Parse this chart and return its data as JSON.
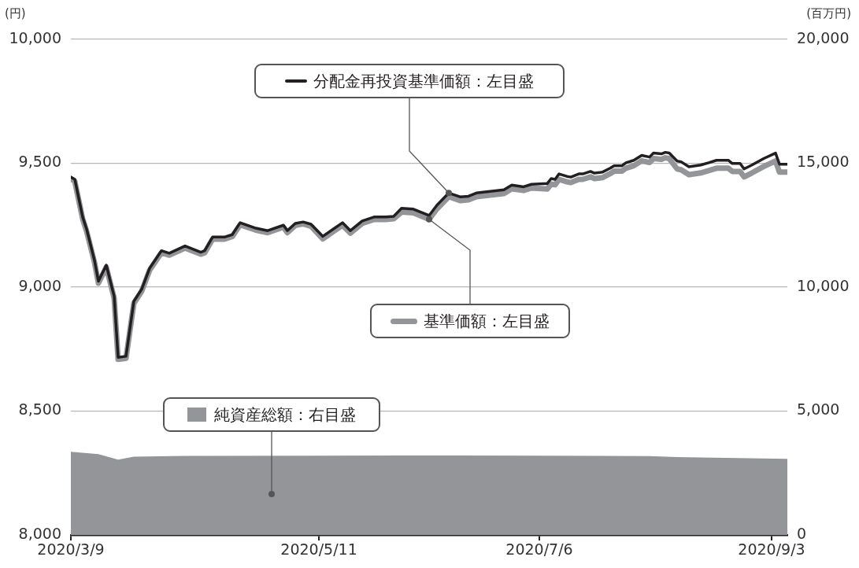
{
  "chart_data": {
    "type": "line",
    "ylabel": "(円)",
    "y2label": "(百万円)",
    "x": [
      "2020-03-09",
      "2020-03-10",
      "2020-03-12",
      "2020-03-13",
      "2020-03-15",
      "2020-03-16",
      "2020-03-18",
      "2020-03-20",
      "2020-03-21",
      "2020-03-23",
      "2020-03-25",
      "2020-03-27",
      "2020-03-29",
      "2020-04-01",
      "2020-04-03",
      "2020-04-07",
      "2020-04-11",
      "2020-04-12",
      "2020-04-14",
      "2020-04-17",
      "2020-04-19",
      "2020-04-21",
      "2020-04-25",
      "2020-04-28",
      "2020-05-02",
      "2020-05-03",
      "2020-05-05",
      "2020-05-07",
      "2020-05-09",
      "2020-05-12",
      "2020-05-15",
      "2020-05-17",
      "2020-05-19",
      "2020-05-22",
      "2020-05-25",
      "2020-05-28",
      "2020-05-30",
      "2020-06-01",
      "2020-06-04",
      "2020-06-08",
      "2020-06-10",
      "2020-06-13",
      "2020-06-16",
      "2020-06-18",
      "2020-06-20",
      "2020-06-27",
      "2020-06-29",
      "2020-07-02",
      "2020-07-04",
      "2020-07-08",
      "2020-07-09",
      "2020-07-10",
      "2020-07-11",
      "2020-07-13",
      "2020-07-14",
      "2020-07-16",
      "2020-07-17",
      "2020-07-19",
      "2020-07-20",
      "2020-07-22",
      "2020-07-24",
      "2020-07-25",
      "2020-07-27",
      "2020-07-28",
      "2020-07-30",
      "2020-08-01",
      "2020-08-03",
      "2020-08-04",
      "2020-08-06",
      "2020-08-07",
      "2020-08-08",
      "2020-08-10",
      "2020-08-11",
      "2020-08-13",
      "2020-08-16",
      "2020-08-18",
      "2020-08-20",
      "2020-08-23",
      "2020-08-24",
      "2020-08-26",
      "2020-08-27",
      "2020-08-29",
      "2020-09-01",
      "2020-09-04",
      "2020-09-05",
      "2020-09-07"
    ],
    "xlim": [
      "2020-03-09",
      "2020-09-07"
    ],
    "xticks": [
      {
        "value": "2020-03-09",
        "label": "2020/3/9"
      },
      {
        "value": "2020-05-11",
        "label": "2020/5/11"
      },
      {
        "value": "2020-07-06",
        "label": "2020/7/6"
      },
      {
        "value": "2020-09-03",
        "label": "2020/9/3"
      }
    ],
    "ylim": [
      8000,
      10000
    ],
    "yticks": [
      {
        "value": 8000,
        "label": "8,000"
      },
      {
        "value": 8500,
        "label": "8,500"
      },
      {
        "value": 9000,
        "label": "9,000"
      },
      {
        "value": 9500,
        "label": "9,500"
      },
      {
        "value": 10000,
        "label": "10,000"
      }
    ],
    "y2lim": [
      0,
      20000
    ],
    "y2ticks": [
      0,
      {
        "value": 5000,
        "label": "5,000"
      },
      {
        "value": 10000,
        "label": "10,000"
      },
      {
        "value": 15000,
        "label": "15,000"
      },
      {
        "value": 20000,
        "label": "20,000"
      }
    ],
    "grid": "y",
    "legend": "top",
    "marker": "none",
    "series": [
      {
        "name": "分配金再投資基準価額：左目盛",
        "color": "#231f20",
        "values": [
          9444,
          9435,
          9283,
          9234,
          9108,
          9024,
          9089,
          8963,
          8717,
          8721,
          8943,
          8992,
          9076,
          9147,
          9137,
          9166,
          9141,
          9147,
          9202,
          9202,
          9212,
          9260,
          9238,
          9228,
          9250,
          9228,
          9257,
          9263,
          9254,
          9205,
          9238,
          9260,
          9228,
          9267,
          9283,
          9283,
          9286,
          9318,
          9315,
          9289,
          9331,
          9380,
          9364,
          9367,
          9380,
          9393,
          9412,
          9405,
          9415,
          9418,
          9438,
          9435,
          9457,
          9447,
          9444,
          9457,
          9457,
          9467,
          9460,
          9464,
          9480,
          9490,
          9490,
          9502,
          9512,
          9532,
          9525,
          9541,
          9538,
          9544,
          9541,
          9509,
          9506,
          9486,
          9493,
          9502,
          9512,
          9512,
          9499,
          9499,
          9477,
          9493,
          9519,
          9541,
          9496,
          9496
        ]
      },
      {
        "name": "基準価額：左目盛",
        "color": "#939598",
        "values": [
          9437,
          9427,
          9275,
          9226,
          9100,
          9016,
          9081,
          8955,
          8709,
          8713,
          8935,
          8984,
          9068,
          9139,
          9129,
          9158,
          9133,
          9139,
          9194,
          9194,
          9204,
          9252,
          9230,
          9220,
          9242,
          9220,
          9249,
          9255,
          9246,
          9195,
          9228,
          9250,
          9218,
          9257,
          9273,
          9273,
          9276,
          9303,
          9300,
          9274,
          9316,
          9365,
          9349,
          9352,
          9365,
          9378,
          9397,
          9390,
          9400,
          9396,
          9416,
          9413,
          9435,
          9425,
          9422,
          9435,
          9435,
          9445,
          9438,
          9442,
          9458,
          9468,
          9468,
          9480,
          9490,
          9510,
          9503,
          9519,
          9516,
          9522,
          9519,
          9477,
          9474,
          9454,
          9461,
          9470,
          9480,
          9480,
          9467,
          9467,
          9445,
          9461,
          9487,
          9509,
          9464,
          9464
        ]
      },
      {
        "name": "純資産総額：右目盛",
        "type": "area",
        "axis": "y2",
        "color": "#939598",
        "x": [
          "2020-03-09",
          "2020-03-16",
          "2020-03-21",
          "2020-03-25",
          "2020-04-07",
          "2020-05-11",
          "2020-06-15",
          "2020-07-06",
          "2020-08-03",
          "2020-08-10",
          "2020-09-07"
        ],
        "values": [
          3360,
          3260,
          3040,
          3160,
          3190,
          3200,
          3210,
          3200,
          3180,
          3140,
          3070
        ]
      }
    ]
  }
}
